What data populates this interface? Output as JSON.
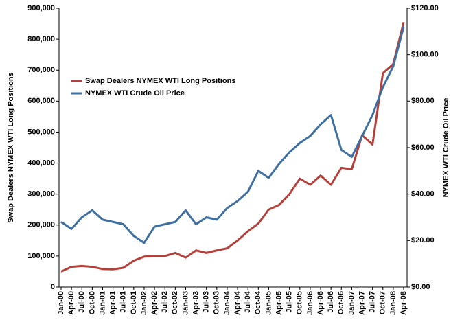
{
  "chart_data": {
    "type": "line",
    "categories": [
      "Jan-00",
      "Apr-00",
      "Jul-00",
      "Oct-00",
      "Jan-01",
      "Apr-01",
      "Jul-01",
      "Oct-01",
      "Jan-02",
      "Apr-02",
      "Jul-02",
      "Oct-02",
      "Jan-03",
      "Apr-03",
      "Jul-03",
      "Oct-03",
      "Jan-04",
      "Apr-04",
      "Jul-04",
      "Oct-04",
      "Jan-05",
      "Apr-05",
      "Jul-05",
      "Oct-05",
      "Jan-06",
      "Apr-06",
      "Jul-06",
      "Oct-06",
      "Jan-07",
      "Apr-07",
      "Jul-07",
      "Oct-07",
      "Jan-08",
      "Apr-08"
    ],
    "ylabel": "Swap Dealers NYMEX WTI Long Positions",
    "y2label": "NYMEX WTI Crude Oil Price",
    "legend": "upper left",
    "series": [
      {
        "name": "Swap Dealers NYMEX WTI Long Positions",
        "color": "#b5403a",
        "values": [
          50000,
          65000,
          68000,
          65000,
          58000,
          57000,
          62000,
          85000,
          98000,
          100000,
          100000,
          110000,
          95000,
          118000,
          110000,
          118000,
          125000,
          150000,
          180000,
          205000,
          250000,
          265000,
          300000,
          350000,
          330000,
          360000,
          330000,
          385000,
          380000,
          490000,
          460000,
          690000,
          720000,
          855000
        ]
      },
      {
        "name": "NYMEX WTI Crude Oil Price",
        "color": "#3d6fa3",
        "axis": "y2",
        "values": [
          28,
          25,
          30,
          33,
          29,
          28,
          27,
          22,
          19,
          26,
          27,
          28,
          33,
          27,
          30,
          29,
          34,
          37,
          41,
          50,
          47,
          53,
          58,
          62,
          65,
          70,
          74,
          59,
          56,
          65,
          74,
          86,
          95,
          112
        ]
      }
    ],
    "ylim": [
      0,
      900000
    ],
    "yticks": [
      0,
      {
        "value": 100000,
        "label": "100,000"
      },
      {
        "value": 200000,
        "label": "200,000"
      },
      {
        "value": 300000,
        "label": "300,000"
      },
      {
        "value": 400000,
        "label": "400,000"
      },
      {
        "value": 500000,
        "label": "500,000"
      },
      {
        "value": 600000,
        "label": "600,000"
      },
      {
        "value": 700000,
        "label": "700,000"
      },
      {
        "value": 800000,
        "label": "800,000"
      },
      {
        "value": 900000,
        "label": "900,000"
      }
    ],
    "y2lim": [
      0,
      120
    ],
    "y2ticks": [
      {
        "value": 0,
        "label": "$0.00"
      },
      {
        "value": 20,
        "label": "$20.00"
      },
      {
        "value": 40,
        "label": "$40.00"
      },
      {
        "value": 60,
        "label": "$60.00"
      },
      {
        "value": 80,
        "label": "$80.00"
      },
      {
        "value": 100,
        "label": "$100.00"
      },
      {
        "value": 120,
        "label": "$120.00"
      }
    ]
  }
}
